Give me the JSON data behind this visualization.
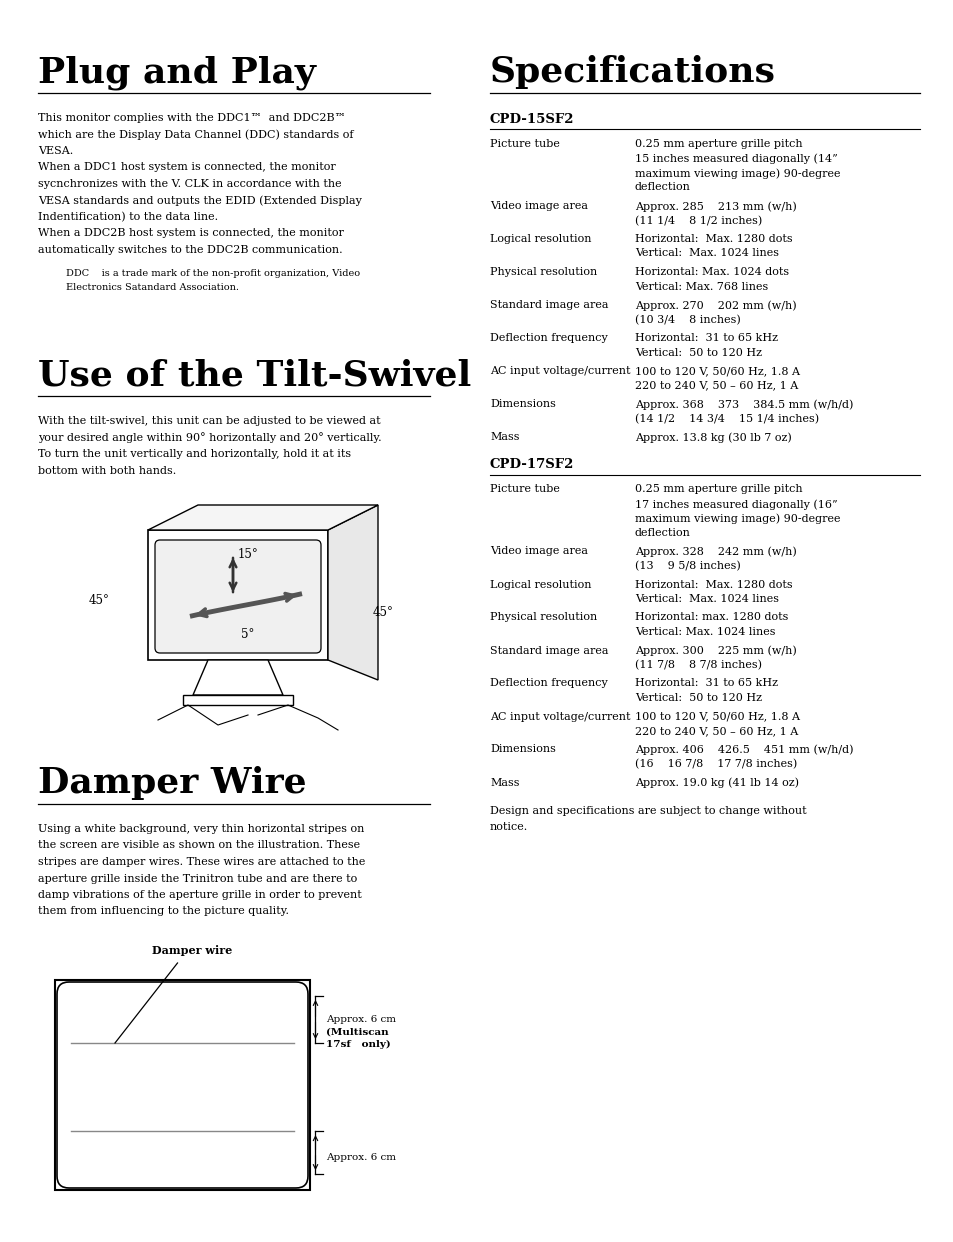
{
  "bg_color": "#ffffff",
  "plug_title": "Plug and Play",
  "plug_body": [
    "This monitor complies with the DDC1™  and DDC2B™",
    "which are the Display Data Channel (DDC) standards of",
    "VESA.",
    "When a DDC1 host system is connected, the monitor",
    "sycnchronizes with the V. CLK in accordance with the",
    "VESA standards and outputs the EDID (Extended Display",
    "Indentification) to the data line.",
    "When a DDC2B host system is connected, the monitor",
    "automatically switches to the DDC2B communication."
  ],
  "plug_note": [
    "DDC    is a trade mark of the non-profit organization, Video",
    "Electronics Satandard Association."
  ],
  "tilt_title": "Use of the Tilt-Swivel",
  "tilt_body": [
    "With the tilt-swivel, this unit can be adjusted to be viewed at",
    "your desired angle within 90° horizontally and 20° vertically.",
    "To turn the unit vertically and horizontally, hold it at its",
    "bottom with both hands."
  ],
  "damper_title": "Damper Wire",
  "damper_body": [
    "Using a white background, very thin horizontal stripes on",
    "the screen are visible as shown on the illustration. These",
    "stripes are damper wires. These wires are attached to the",
    "aperture grille inside the Trinitron tube and are there to",
    "damp vibrations of the aperture grille in order to prevent",
    "them from influencing to the picture quality."
  ],
  "spec_title": "Specifications",
  "cpd15_label": "CPD-15SF2",
  "cpd15_rows": [
    [
      "Picture tube",
      "0.25 mm aperture grille pitch\n15 inches measured diagonally (14”\nmaximum viewing image) 90-degree\ndeflection"
    ],
    [
      "Video image area",
      "Approx. 285    213 mm (w/h)\n(11 1/4    8 1/2 inches)"
    ],
    [
      "Logical resolution",
      "Horizontal:  Max. 1280 dots\nVertical:  Max. 1024 lines"
    ],
    [
      "Physical resolution",
      "Horizontal: Max. 1024 dots\nVertical: Max. 768 lines"
    ],
    [
      "Standard image area",
      "Approx. 270    202 mm (w/h)\n(10 3/4    8 inches)"
    ],
    [
      "Deflection frequency",
      "Horizontal:  31 to 65 kHz\nVertical:  50 to 120 Hz"
    ],
    [
      "AC input voltage/current",
      "100 to 120 V, 50/60 Hz, 1.8 A\n220 to 240 V, 50 – 60 Hz, 1 A"
    ],
    [
      "Dimensions",
      "Approx. 368    373    384.5 mm (w/h/d)\n(14 1/2    14 3/4    15 1/4 inches)"
    ],
    [
      "Mass",
      "Approx. 13.8 kg (30 lb 7 oz)"
    ]
  ],
  "cpd17_label": "CPD-17SF2",
  "cpd17_rows": [
    [
      "Picture tube",
      "0.25 mm aperture grille pitch\n17 inches measured diagonally (16”\nmaximum viewing image) 90-degree\ndeflection"
    ],
    [
      "Video image area",
      "Approx. 328    242 mm (w/h)\n(13    9 5/8 inches)"
    ],
    [
      "Logical resolution",
      "Horizontal:  Max. 1280 dots\nVertical:  Max. 1024 lines"
    ],
    [
      "Physical resolution",
      "Horizontal: max. 1280 dots\nVertical: Max. 1024 lines"
    ],
    [
      "Standard image area",
      "Approx. 300    225 mm (w/h)\n(11 7/8    8 7/8 inches)"
    ],
    [
      "Deflection frequency",
      "Horizontal:  31 to 65 kHz\nVertical:  50 to 120 Hz"
    ],
    [
      "AC input voltage/current",
      "100 to 120 V, 50/60 Hz, 1.8 A\n220 to 240 V, 50 – 60 Hz, 1 A"
    ],
    [
      "Dimensions",
      "Approx. 406    426.5    451 mm (w/h/d)\n(16    16 7/8    17 7/8 inches)"
    ],
    [
      "Mass",
      "Approx. 19.0 kg (41 lb 14 oz)"
    ]
  ],
  "spec_footer": "Design and specifications are subject to change without\nnotice."
}
